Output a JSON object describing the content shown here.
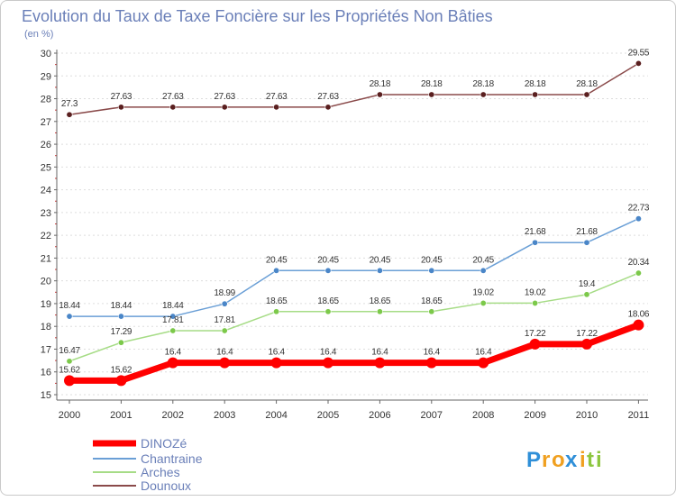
{
  "chart_data": {
    "type": "line",
    "title": "Evolution du Taux de Taxe Foncière sur les Propriétés Non Bâties",
    "unit_label": "(en %)",
    "xlabel": "",
    "ylabel": "",
    "categories": [
      "2000",
      "2001",
      "2002",
      "2003",
      "2004",
      "2005",
      "2006",
      "2007",
      "2008",
      "2009",
      "2010",
      "2011"
    ],
    "ylim": [
      15,
      30
    ],
    "yticks": [
      15,
      16,
      17,
      18,
      19,
      20,
      21,
      22,
      23,
      24,
      25,
      26,
      27,
      28,
      29,
      30
    ],
    "grid": "horizontal dotted",
    "series": [
      {
        "name": "DINOZé",
        "color": "#ff0000",
        "style": "thick",
        "values": [
          15.62,
          15.62,
          16.4,
          16.4,
          16.4,
          16.4,
          16.4,
          16.4,
          16.4,
          17.22,
          17.22,
          18.06
        ],
        "labels": [
          "15.62",
          "15.62",
          "16.4",
          "16.4",
          "16.4",
          "16.4",
          "16.4",
          "16.4",
          "16.4",
          "17.22",
          "17.22",
          "18.06"
        ]
      },
      {
        "name": "Chantraine",
        "color": "#6a9fd6",
        "marker": "#4a86c8",
        "style": "thin",
        "values": [
          18.44,
          18.44,
          18.44,
          18.99,
          20.45,
          20.45,
          20.45,
          20.45,
          20.45,
          21.68,
          21.68,
          22.73
        ],
        "labels": [
          "18.44",
          "18.44",
          "18.44",
          "18.99",
          "20.45",
          "20.45",
          "20.45",
          "20.45",
          "20.45",
          "21.68",
          "21.68",
          "22.73"
        ]
      },
      {
        "name": "Arches",
        "color": "#a6dc86",
        "marker": "#7cc94a",
        "style": "thin",
        "values": [
          16.47,
          17.29,
          17.81,
          17.81,
          18.65,
          18.65,
          18.65,
          18.65,
          19.02,
          19.02,
          19.4,
          20.34
        ],
        "labels": [
          "16.47",
          "17.29",
          "17.81",
          "17.81",
          "18.65",
          "18.65",
          "18.65",
          "18.65",
          "19.02",
          "19.02",
          "19.4",
          "20.34"
        ]
      },
      {
        "name": "Dounoux",
        "color": "#8a4a4a",
        "marker": "#5a1f1f",
        "style": "thin",
        "values": [
          27.3,
          27.63,
          27.63,
          27.63,
          27.63,
          27.63,
          28.18,
          28.18,
          28.18,
          28.18,
          28.18,
          29.55
        ],
        "labels": [
          "27.3",
          "27.63",
          "27.63",
          "27.63",
          "27.63",
          "27.63",
          "28.18",
          "28.18",
          "28.18",
          "28.18",
          "28.18",
          "29.55"
        ]
      }
    ]
  },
  "logo": {
    "letters": [
      "P",
      "r",
      "o",
      "x",
      "i",
      "t",
      "i"
    ],
    "colors": [
      "#2f8fd8",
      "#f0a020",
      "#f0a020",
      "#2f8fd8",
      "#f0a020",
      "#8dc63f",
      "#8dc63f"
    ]
  }
}
